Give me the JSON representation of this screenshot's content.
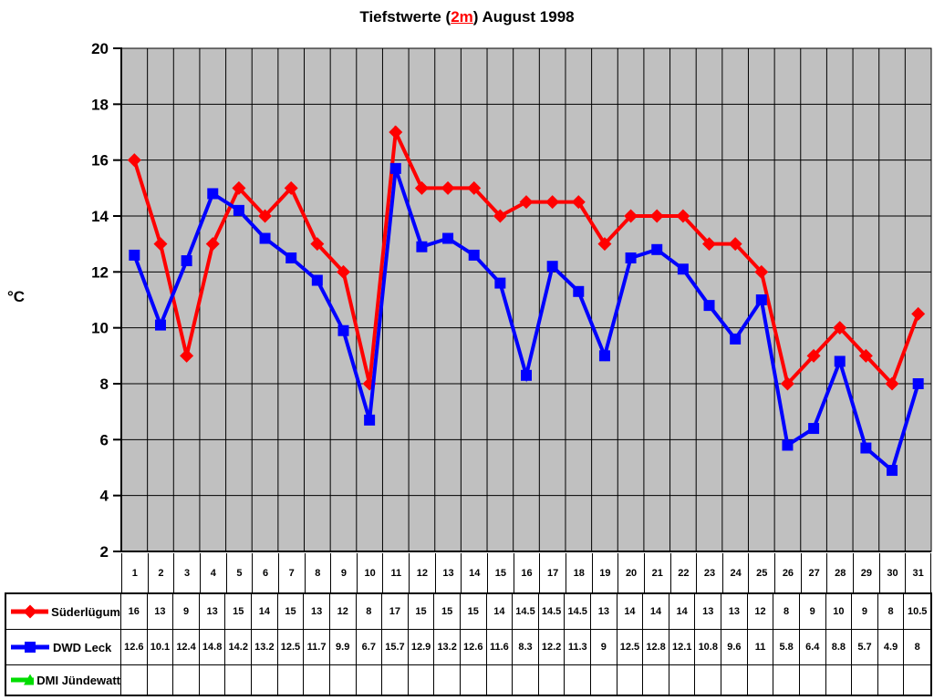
{
  "title": {
    "prefix": "Tiefstwerte (",
    "highlight": "2m",
    "suffix": ") August 1998"
  },
  "axes": {
    "y_title": "°C",
    "y_ticks": [
      20,
      18,
      16,
      14,
      12,
      10,
      8,
      6,
      4,
      2
    ]
  },
  "colors": {
    "plot_background": "#c0c0c0",
    "gridline": "#000000",
    "title_highlight": "#ff0000",
    "series_suederluegum": "#ff0000",
    "series_dwd_leck": "#0000ff",
    "series_dmi_juendewatt": "#00dd00"
  },
  "chart_data": {
    "type": "line",
    "title": "Tiefstwerte (2m) August 1998",
    "xlabel": "",
    "ylabel": "°C",
    "ylim": [
      2,
      20
    ],
    "y_step": 2,
    "grid": true,
    "plot_bg": "#c0c0c0",
    "legend_position": "table-left",
    "categories": [
      "1",
      "2",
      "3",
      "4",
      "5",
      "6",
      "7",
      "8",
      "9",
      "10",
      "11",
      "12",
      "13",
      "14",
      "15",
      "16",
      "17",
      "18",
      "19",
      "20",
      "21",
      "22",
      "23",
      "24",
      "25",
      "26",
      "27",
      "28",
      "29",
      "30",
      "31"
    ],
    "series": [
      {
        "name": "Süderlügum",
        "color": "#ff0000",
        "marker": "diamond",
        "values": [
          16,
          13,
          9,
          13,
          15,
          14,
          15,
          13,
          12,
          8,
          17,
          15,
          15,
          15,
          14,
          14.5,
          14.5,
          14.5,
          13,
          14,
          14,
          14,
          13,
          13,
          12,
          8,
          9,
          10,
          9,
          8,
          10.5
        ]
      },
      {
        "name": "DWD Leck",
        "color": "#0000ff",
        "marker": "square",
        "values": [
          12.6,
          10.1,
          12.4,
          14.8,
          14.2,
          13.2,
          12.5,
          11.7,
          9.9,
          6.7,
          15.7,
          12.9,
          13.2,
          12.6,
          11.6,
          8.3,
          12.2,
          11.3,
          9,
          12.5,
          12.8,
          12.1,
          10.8,
          9.6,
          11,
          5.8,
          6.4,
          8.8,
          5.7,
          4.9,
          8
        ]
      },
      {
        "name": "DMI Jündewatt",
        "color": "#00dd00",
        "marker": "triangle",
        "values": []
      }
    ]
  }
}
